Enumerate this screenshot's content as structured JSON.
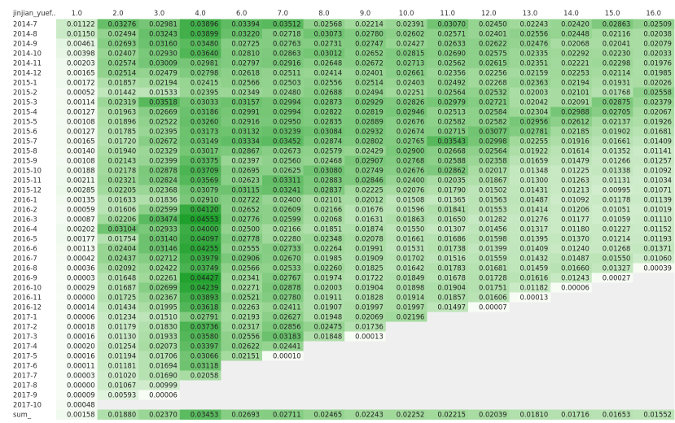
{
  "chart_data": {
    "type": "heatmap",
    "corner_label": "jinjian_yuef..",
    "columns": [
      "1.0",
      "2.0",
      "3.0",
      "4.0",
      "6.0",
      "7.0",
      "8.0",
      "9.0",
      "10.0",
      "11.0",
      "12.0",
      "13.0",
      "14.0",
      "15.0",
      "16.0"
    ],
    "rows": [
      "2014-7",
      "2014-8",
      "2014-9",
      "2014-10",
      "2014-11",
      "2014-12",
      "2015-1",
      "2015-2",
      "2015-3",
      "2015-4",
      "2015-5",
      "2015-6",
      "2015-7",
      "2015-8",
      "2015-9",
      "2015-10",
      "2015-11",
      "2015-12",
      "2016-1",
      "2016-2",
      "2016-3",
      "2016-4",
      "2016-5",
      "2016-6",
      "2016-7",
      "2016-8",
      "2016-9",
      "2016-10",
      "2016-11",
      "2016-12",
      "2017-1",
      "2017-2",
      "2017-3",
      "2017-4",
      "2017-5",
      "2017-6",
      "2017-7",
      "2017-8",
      "2017-9",
      "2017-10",
      "sum_"
    ],
    "values": [
      [
        "0.01122",
        "0.03276",
        "0.02981",
        "0.03896",
        "0.03394",
        "0.03512",
        "0.02568",
        "0.02214",
        "0.02391",
        "0.03070",
        "0.02450",
        "0.02243",
        "0.02420",
        "0.02863",
        "0.02509"
      ],
      [
        "0.01150",
        "0.02494",
        "0.03243",
        "0.03899",
        "0.03220",
        "0.02718",
        "0.03073",
        "0.02780",
        "0.02602",
        "0.02571",
        "0.02401",
        "0.02556",
        "0.02448",
        "0.02116",
        "0.02038"
      ],
      [
        "0.00461",
        "0.02693",
        "0.03160",
        "0.03480",
        "0.02725",
        "0.02763",
        "0.02731",
        "0.02747",
        "0.02427",
        "0.02633",
        "0.02622",
        "0.02476",
        "0.02068",
        "0.02041",
        "0.02079"
      ],
      [
        "0.00398",
        "0.02407",
        "0.02930",
        "0.03640",
        "0.02810",
        "0.02863",
        "0.03012",
        "0.02652",
        "0.02815",
        "0.02690",
        "0.02575",
        "0.02335",
        "0.02292",
        "0.02230",
        "0.02033"
      ],
      [
        "0.00203",
        "0.02574",
        "0.03009",
        "0.02981",
        "0.02797",
        "0.02916",
        "0.02648",
        "0.02672",
        "0.02713",
        "0.02562",
        "0.02615",
        "0.02351",
        "0.02221",
        "0.02298",
        "0.01976"
      ],
      [
        "0.00165",
        "0.02514",
        "0.02479",
        "0.02798",
        "0.02618",
        "0.02511",
        "0.02414",
        "0.02401",
        "0.02661",
        "0.02356",
        "0.02256",
        "0.02159",
        "0.02253",
        "0.02114",
        "0.01985"
      ],
      [
        "0.00172",
        "0.01857",
        "0.02194",
        "0.02415",
        "0.02566",
        "0.02503",
        "0.02556",
        "0.02514",
        "0.02403",
        "0.02492",
        "0.02268",
        "0.02363",
        "0.02194",
        "0.01931",
        "0.02026"
      ],
      [
        "0.00052",
        "0.01442",
        "0.01533",
        "0.02395",
        "0.02349",
        "0.02480",
        "0.02688",
        "0.02494",
        "0.02251",
        "0.02564",
        "0.02532",
        "0.02003",
        "0.02101",
        "0.01768",
        "0.02558"
      ],
      [
        "0.00114",
        "0.02319",
        "0.03518",
        "0.03033",
        "0.03157",
        "0.02994",
        "0.02873",
        "0.02929",
        "0.02826",
        "0.02979",
        "0.02721",
        "0.02042",
        "0.02091",
        "0.02875",
        "0.02379"
      ],
      [
        "0.00127",
        "0.01963",
        "0.02669",
        "0.03186",
        "0.02991",
        "0.02994",
        "0.02822",
        "0.02819",
        "0.02946",
        "0.02513",
        "0.02584",
        "0.02304",
        "0.02988",
        "0.02705",
        "0.02067"
      ],
      [
        "0.00108",
        "0.01896",
        "0.02522",
        "0.03260",
        "0.02916",
        "0.02950",
        "0.02835",
        "0.02889",
        "0.02676",
        "0.02582",
        "0.02582",
        "0.02956",
        "0.02612",
        "0.02137",
        "0.01926"
      ],
      [
        "0.00127",
        "0.01785",
        "0.02395",
        "0.03173",
        "0.03132",
        "0.03239",
        "0.03084",
        "0.02932",
        "0.02674",
        "0.02715",
        "0.03077",
        "0.02781",
        "0.02185",
        "0.01902",
        "0.01681"
      ],
      [
        "0.00165",
        "0.01720",
        "0.02672",
        "0.03149",
        "0.03334",
        "0.03452",
        "0.02874",
        "0.02802",
        "0.02765",
        "0.03543",
        "0.02998",
        "0.02255",
        "0.01916",
        "0.01661",
        "0.01409"
      ],
      [
        "0.00140",
        "0.01940",
        "0.02329",
        "0.03017",
        "0.02867",
        "0.02673",
        "0.02579",
        "0.02429",
        "0.02900",
        "0.02668",
        "0.02564",
        "0.01922",
        "0.01614",
        "0.01352",
        "0.01141"
      ],
      [
        "0.00108",
        "0.02143",
        "0.02399",
        "0.03375",
        "0.02397",
        "0.02560",
        "0.02468",
        "0.02907",
        "0.02768",
        "0.02588",
        "0.02358",
        "0.01659",
        "0.01479",
        "0.01266",
        "0.01257"
      ],
      [
        "0.00188",
        "0.02178",
        "0.02878",
        "0.03709",
        "0.02695",
        "0.02625",
        "0.03080",
        "0.02749",
        "0.02676",
        "0.02862",
        "0.02017",
        "0.01348",
        "0.01225",
        "0.01338",
        "0.01092"
      ],
      [
        "0.00211",
        "0.02321",
        "0.02824",
        "0.03569",
        "0.02623",
        "0.03311",
        "0.02883",
        "0.02846",
        "0.02400",
        "0.02035",
        "0.01867",
        "0.01300",
        "0.01263",
        "0.01131",
        "0.01034"
      ],
      [
        "0.00285",
        "0.02205",
        "0.02368",
        "0.03079",
        "0.03115",
        "0.03241",
        "0.02837",
        "0.02225",
        "0.02076",
        "0.01790",
        "0.01502",
        "0.01431",
        "0.01213",
        "0.00995",
        "0.01071"
      ],
      [
        "0.00135",
        "0.01633",
        "0.01836",
        "0.02910",
        "0.02722",
        "0.02400",
        "0.02101",
        "0.02012",
        "0.01508",
        "0.01365",
        "0.01563",
        "0.01487",
        "0.01092",
        "0.01178",
        "0.01139"
      ],
      [
        "0.00059",
        "0.01606",
        "0.02599",
        "0.04120",
        "0.02652",
        "0.02609",
        "0.02166",
        "0.01676",
        "0.01596",
        "0.01841",
        "0.01553",
        "0.01414",
        "0.01206",
        "0.01051",
        "0.01019"
      ],
      [
        "0.00087",
        "0.02206",
        "0.03474",
        "0.04553",
        "0.02776",
        "0.02599",
        "0.02068",
        "0.01631",
        "0.01863",
        "0.01650",
        "0.01282",
        "0.01276",
        "0.01177",
        "0.01059",
        "0.01110"
      ],
      [
        "0.00202",
        "0.03104",
        "0.02933",
        "0.04000",
        "0.02500",
        "0.02166",
        "0.01851",
        "0.01874",
        "0.01550",
        "0.01307",
        "0.01456",
        "0.01317",
        "0.01180",
        "0.01227",
        "0.01152"
      ],
      [
        "0.00177",
        "0.01754",
        "0.03140",
        "0.04097",
        "0.02778",
        "0.02280",
        "0.02348",
        "0.02078",
        "0.01661",
        "0.01686",
        "0.01598",
        "0.01395",
        "0.01370",
        "0.01214",
        "0.01193"
      ],
      [
        "0.00113",
        "0.02404",
        "0.03146",
        "0.04255",
        "0.02555",
        "0.02733",
        "0.02264",
        "0.01991",
        "0.01531",
        "0.01738",
        "0.01399",
        "0.01409",
        "0.01240",
        "0.01268",
        "0.01371"
      ],
      [
        "0.00042",
        "0.02437",
        "0.02712",
        "0.03979",
        "0.02906",
        "0.02670",
        "0.01985",
        "0.01909",
        "0.01702",
        "0.01516",
        "0.01559",
        "0.01432",
        "0.01487",
        "0.01550",
        "0.01060"
      ],
      [
        "0.00036",
        "0.02092",
        "0.02422",
        "0.03749",
        "0.02566",
        "0.02533",
        "0.02260",
        "0.01825",
        "0.01642",
        "0.01783",
        "0.01681",
        "0.01459",
        "0.01660",
        "0.01327",
        "0.00039"
      ],
      [
        "0.00003",
        "0.01648",
        "0.02261",
        "0.04427",
        "0.02341",
        "0.02767",
        "0.01974",
        "0.01722",
        "0.01849",
        "0.01678",
        "0.01728",
        "0.01616",
        "0.01243",
        "0.00027",
        null
      ],
      [
        "0.00029",
        "0.01687",
        "0.02699",
        "0.04239",
        "0.02271",
        "0.02878",
        "0.02003",
        "0.01904",
        "0.01898",
        "0.01904",
        "0.01751",
        "0.01182",
        "0.00006",
        null,
        null
      ],
      [
        "0.00000",
        "0.01725",
        "0.02367",
        "0.03893",
        "0.02521",
        "0.02780",
        "0.01911",
        "0.01828",
        "0.01914",
        "0.01857",
        "0.01606",
        "0.00013",
        null,
        null,
        null
      ],
      [
        "0.00014",
        "0.01434",
        "0.01995",
        "0.03618",
        "0.02263",
        "0.02411",
        "0.01907",
        "0.01997",
        "0.01997",
        "0.01497",
        "0.00007",
        null,
        null,
        null,
        null
      ],
      [
        "0.00006",
        "0.01234",
        "0.01510",
        "0.02791",
        "0.02193",
        "0.02627",
        "0.01948",
        "0.02069",
        "0.02196",
        null,
        null,
        null,
        null,
        null,
        null
      ],
      [
        "0.00018",
        "0.01179",
        "0.01830",
        "0.03736",
        "0.02317",
        "0.02856",
        "0.02475",
        "0.01736",
        null,
        null,
        null,
        null,
        null,
        null,
        null
      ],
      [
        "0.00016",
        "0.01130",
        "0.01933",
        "0.03580",
        "0.02556",
        "0.03183",
        "0.01848",
        "0.00013",
        null,
        null,
        null,
        null,
        null,
        null,
        null
      ],
      [
        "0.00020",
        "0.01254",
        "0.02073",
        "0.03397",
        "0.02622",
        "0.02441",
        null,
        null,
        null,
        null,
        null,
        null,
        null,
        null,
        null
      ],
      [
        "0.00016",
        "0.01194",
        "0.01706",
        "0.03066",
        "0.02151",
        "0.00010",
        null,
        null,
        null,
        null,
        null,
        null,
        null,
        null,
        null
      ],
      [
        "0.00011",
        "0.01181",
        "0.01694",
        "0.03118",
        null,
        null,
        null,
        null,
        null,
        null,
        null,
        null,
        null,
        null,
        null
      ],
      [
        "0.00003",
        "0.01020",
        "0.01690",
        "0.02058",
        null,
        null,
        null,
        null,
        null,
        null,
        null,
        null,
        null,
        null,
        null
      ],
      [
        "0.00000",
        "0.01067",
        "0.00999",
        null,
        null,
        null,
        null,
        null,
        null,
        null,
        null,
        null,
        null,
        null,
        null
      ],
      [
        "0.00009",
        "0.00593",
        "0.00006",
        null,
        null,
        null,
        null,
        null,
        null,
        null,
        null,
        null,
        null,
        null,
        null
      ],
      [
        "0.00048",
        null,
        null,
        null,
        null,
        null,
        null,
        null,
        null,
        null,
        null,
        null,
        null,
        null,
        null
      ],
      [
        "0.00158",
        "0.01880",
        "0.02370",
        "0.03453",
        "0.02693",
        "0.02711",
        "0.02465",
        "0.02243",
        "0.02252",
        "0.02215",
        "0.02039",
        "0.01810",
        "0.01716",
        "0.01653",
        "0.01552"
      ]
    ],
    "color_scale": {
      "low": "#f7fcf5",
      "mid": "#a1d99b",
      "high": "#1fa02c",
      "empty": "#efefef"
    },
    "value_range": [
      0,
      0.045
    ]
  }
}
